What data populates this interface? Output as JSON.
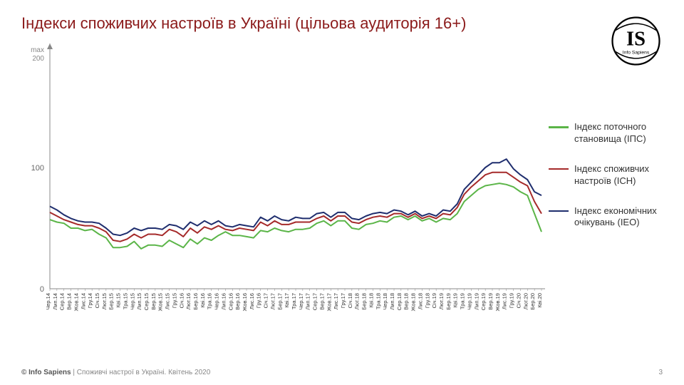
{
  "title": "Індекси споживчих настроїв в Україні (цільова аудиторія 16+)",
  "logo": {
    "top": "IS",
    "bottom": "Info Sapiens"
  },
  "footer": {
    "brand": "© Info Sapiens",
    "caption": " | Споживчі настрої в Україні. Квітень 2020",
    "page": "3"
  },
  "chart": {
    "type": "line",
    "axis_label_top": "max",
    "axis_label_bottom": "200",
    "ylim": [
      0,
      200
    ],
    "yticks": [
      0,
      100
    ],
    "yaxis_color": "#888888",
    "line_width": 2,
    "label_fontsize": 10,
    "background": "#ffffff",
    "categories": [
      "Чер.14",
      "Лип.14",
      "Сер.14",
      "Вер.14",
      "Жов.14",
      "Лис.14",
      "Гру.14",
      "Січ.15",
      "Лют.15",
      "Бер.15",
      "Кві.15",
      "Тра.15",
      "Чер.15",
      "Лип.15",
      "Сер.15",
      "Вер.15",
      "Жов.15",
      "Лис.15",
      "Гру.15",
      "Січ.16",
      "Лют.16",
      "Бер.16",
      "Кві.16",
      "Тра.16",
      "Чер.16",
      "Лип.16",
      "Сер.16",
      "Вер.16",
      "Жов.16",
      "Лис.16",
      "Гру.16",
      "Січ.17",
      "Лют.17",
      "Бер.17",
      "Кві.17",
      "Тра.17",
      "Чер.17",
      "Лип.17",
      "Сер.17",
      "Вер.17",
      "Жов.17",
      "Лис.17",
      "Гру.17",
      "Січ.18",
      "Лют.18",
      "Бер.18",
      "Кві.18",
      "Тра.18",
      "Чер.18",
      "Лип.18",
      "Сер.18",
      "Вер.18",
      "Жов.18",
      "Лис.18",
      "Гру.18",
      "Січ.19",
      "Лют.19",
      "Бер.19",
      "Кві.19",
      "Тра.19",
      "Чер.19",
      "Лип.19",
      "Сер.19",
      "Вер.19",
      "Жов.19",
      "Лис.19",
      "Гру.19",
      "Січ.20",
      "Лют.20",
      "Бер.20",
      "Кві.20"
    ],
    "series": [
      {
        "name": "Індекс поточного становища (ІПС)",
        "color": "#5bb548",
        "values": [
          57,
          55,
          54,
          50,
          50,
          48,
          49,
          45,
          42,
          34,
          34,
          35,
          39,
          33,
          36,
          36,
          35,
          40,
          37,
          34,
          41,
          37,
          42,
          40,
          44,
          47,
          44,
          44,
          43,
          42,
          48,
          47,
          50,
          48,
          47,
          49,
          49,
          50,
          54,
          56,
          52,
          56,
          56,
          50,
          49,
          53,
          54,
          56,
          55,
          59,
          60,
          57,
          60,
          56,
          58,
          55,
          58,
          57,
          62,
          72,
          77,
          82,
          85,
          86,
          87,
          86,
          84,
          80,
          77,
          62,
          47
        ]
      },
      {
        "name": "Індекс споживчих настроїв (ІСН)",
        "color": "#a52a2a",
        "values": [
          63,
          60,
          57,
          55,
          53,
          52,
          52,
          50,
          47,
          40,
          39,
          41,
          45,
          42,
          45,
          45,
          44,
          49,
          47,
          43,
          50,
          46,
          51,
          49,
          52,
          49,
          48,
          50,
          49,
          48,
          55,
          52,
          56,
          53,
          53,
          55,
          55,
          55,
          58,
          60,
          56,
          60,
          60,
          55,
          54,
          57,
          59,
          60,
          59,
          62,
          62,
          59,
          62,
          58,
          60,
          58,
          62,
          61,
          67,
          78,
          84,
          89,
          94,
          96,
          96,
          96,
          92,
          88,
          85,
          72,
          62
        ]
      },
      {
        "name": "Індекс економічних очікувань (ІЕО)",
        "color": "#1f2e6e",
        "values": [
          68,
          65,
          61,
          58,
          56,
          55,
          55,
          54,
          50,
          45,
          44,
          46,
          50,
          48,
          50,
          50,
          49,
          53,
          52,
          49,
          55,
          52,
          56,
          53,
          56,
          52,
          51,
          53,
          52,
          51,
          59,
          56,
          60,
          57,
          56,
          59,
          58,
          58,
          62,
          63,
          59,
          63,
          63,
          58,
          57,
          60,
          62,
          63,
          62,
          65,
          64,
          61,
          64,
          60,
          62,
          60,
          65,
          64,
          70,
          82,
          88,
          94,
          100,
          104,
          104,
          107,
          99,
          94,
          90,
          80,
          77
        ]
      }
    ]
  },
  "legend": {
    "items": [
      {
        "label": "Індекс поточного становища (ІПС)",
        "color": "#5bb548"
      },
      {
        "label": "Індекс споживчих настроїв (ІСН)",
        "color": "#a52a2a"
      },
      {
        "label": "Індекс економічних очікувань (ІЕО)",
        "color": "#1f2e6e"
      }
    ]
  }
}
